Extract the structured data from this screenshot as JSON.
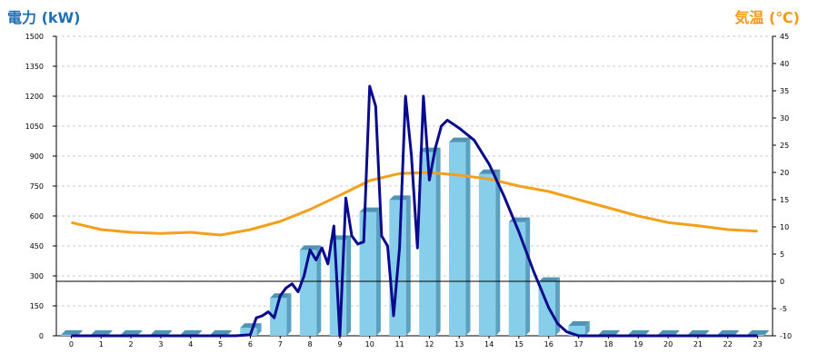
{
  "chart_data": {
    "type": "bar",
    "title": "",
    "y_left_label": "電力 (kW)",
    "y_right_label": "気温 (℃)",
    "xlabel": "",
    "categories": [
      "0",
      "1",
      "2",
      "3",
      "4",
      "5",
      "6",
      "7",
      "8",
      "9",
      "10",
      "11",
      "12",
      "13",
      "14",
      "15",
      "16",
      "17",
      "18",
      "19",
      "20",
      "21",
      "22",
      "23"
    ],
    "ylim_left": [
      0,
      1500
    ],
    "ylim_right": [
      -10,
      45
    ],
    "yticks_left": [
      0,
      150,
      300,
      450,
      600,
      750,
      900,
      1050,
      1200,
      1350,
      1500
    ],
    "yticks_right": [
      -10,
      -5,
      0,
      5,
      10,
      15,
      20,
      25,
      30,
      35,
      40,
      45
    ],
    "grid": true,
    "zero_line_temperature": 0,
    "colors": {
      "bar": "#87ceeb",
      "bar_side": "#5aa0c0",
      "bar_top": "#4f93b5",
      "power_line": "#0a0a8c",
      "temperature_line": "#f5a01a",
      "left_label": "#1f6fb3",
      "right_label": "#f29a16"
    },
    "series": [
      {
        "name": "電力",
        "type": "bar",
        "axis": "left",
        "values": [
          5,
          5,
          5,
          5,
          5,
          5,
          40,
          190,
          430,
          480,
          620,
          680,
          920,
          970,
          810,
          570,
          270,
          50,
          5,
          5,
          5,
          5,
          5,
          5
        ]
      },
      {
        "name": "電力",
        "type": "line",
        "axis": "left",
        "x": [
          0,
          1,
          2,
          3,
          4,
          5,
          5.5,
          6,
          6.2,
          6.4,
          6.6,
          6.8,
          7,
          7.2,
          7.4,
          7.6,
          7.8,
          8,
          8.2,
          8.4,
          8.6,
          8.8,
          9,
          9.2,
          9.4,
          9.6,
          9.8,
          10,
          10.2,
          10.4,
          10.6,
          10.8,
          11,
          11.2,
          11.4,
          11.6,
          11.8,
          12,
          12.2,
          12.4,
          12.6,
          12.8,
          13,
          13.5,
          14,
          14.5,
          15,
          15.5,
          16,
          16.3,
          16.6,
          17,
          17.5,
          18,
          19,
          20,
          21,
          22,
          23
        ],
        "y": [
          0,
          0,
          0,
          0,
          0,
          0,
          0,
          5,
          90,
          100,
          120,
          90,
          200,
          240,
          260,
          220,
          300,
          430,
          380,
          440,
          360,
          550,
          0,
          690,
          500,
          460,
          470,
          1250,
          1150,
          500,
          450,
          100,
          440,
          1200,
          900,
          440,
          1200,
          780,
          940,
          1050,
          1080,
          1060,
          1040,
          980,
          860,
          700,
          520,
          320,
          140,
          60,
          20,
          0,
          0,
          0,
          0,
          0,
          0,
          0,
          0
        ]
      },
      {
        "name": "気温",
        "type": "line",
        "axis": "right",
        "x": [
          0,
          1,
          2,
          3,
          4,
          5,
          6,
          7,
          8,
          9,
          10,
          11,
          12,
          13,
          14,
          15,
          16,
          17,
          18,
          19,
          20,
          21,
          22,
          23
        ],
        "y": [
          10.8,
          9.5,
          9.0,
          8.8,
          9.0,
          8.5,
          9.5,
          11.0,
          13.2,
          15.8,
          18.5,
          19.8,
          20.0,
          19.5,
          18.8,
          17.5,
          16.5,
          15.0,
          13.5,
          12.0,
          10.8,
          10.2,
          9.5,
          9.2
        ]
      }
    ]
  }
}
